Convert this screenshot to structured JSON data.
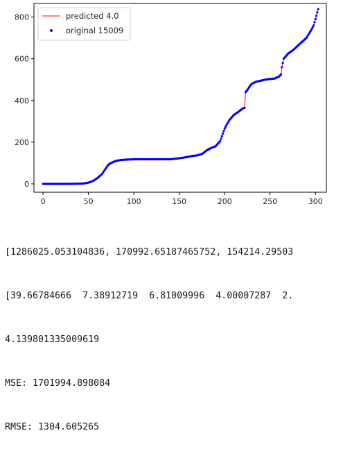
{
  "chart_data": {
    "type": "line+scatter",
    "xlim": [
      -10,
      312
    ],
    "ylim": [
      -40,
      865
    ],
    "xticks": [
      0,
      50,
      100,
      150,
      200,
      250,
      300
    ],
    "yticks": [
      0,
      200,
      400,
      600,
      800
    ],
    "legend_position": "top-left",
    "series": [
      {
        "name": "predicted 4.0",
        "kind": "line",
        "color": "#ff0000"
      },
      {
        "name": "original 15009",
        "kind": "scatter",
        "color": "#0000ff"
      }
    ],
    "x": [
      0,
      10,
      20,
      30,
      40,
      45,
      50,
      55,
      60,
      65,
      70,
      72,
      75,
      80,
      85,
      90,
      100,
      110,
      120,
      130,
      140,
      150,
      155,
      160,
      165,
      170,
      175,
      180,
      185,
      190,
      195,
      200,
      205,
      210,
      215,
      220,
      222,
      223,
      225,
      228,
      230,
      235,
      240,
      245,
      250,
      255,
      260,
      262,
      263,
      265,
      270,
      275,
      280,
      285,
      290,
      295,
      298,
      300,
      302,
      303
    ],
    "y": [
      0,
      0,
      0,
      0,
      1,
      2,
      6,
      14,
      28,
      48,
      80,
      92,
      100,
      110,
      114,
      116,
      118,
      118,
      118,
      118,
      118,
      123,
      126,
      130,
      134,
      137,
      143,
      160,
      172,
      180,
      205,
      265,
      305,
      330,
      345,
      362,
      365,
      440,
      450,
      470,
      480,
      490,
      495,
      500,
      503,
      505,
      515,
      525,
      560,
      600,
      625,
      640,
      660,
      680,
      700,
      735,
      760,
      790,
      822,
      838
    ]
  },
  "output": {
    "line1": "[1286025.053104836, 170992.65187465752, 154214.29503",
    "line2": "[39.66784666  7.38912719  6.81009996  4.00007287  2.",
    "line3": "4.139801335009619",
    "line4": "MSE: 1701994.898084",
    "line5": "RMSE: 1304.605265"
  }
}
